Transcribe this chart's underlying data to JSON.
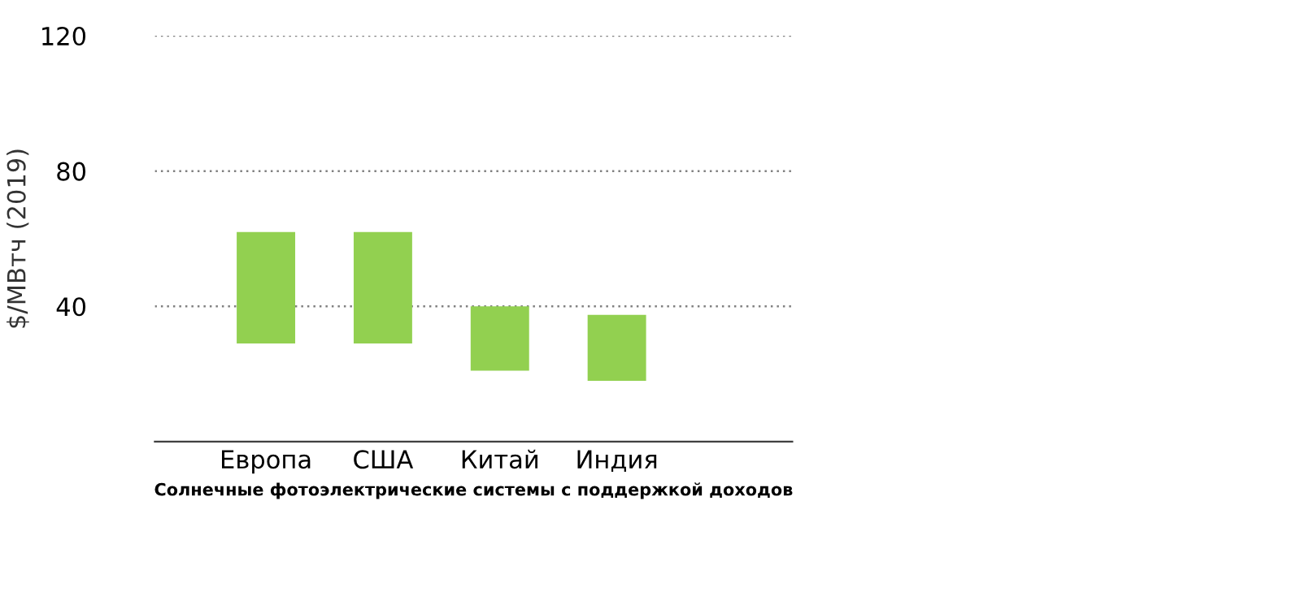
{
  "chart_data": {
    "type": "bar",
    "ylabel": "$/МВтч (2019)",
    "xlabel": "Солнечные фотоэлектрические системы с поддержкой доходов",
    "categories": [
      "Европа",
      "США",
      "Китай",
      "Индия"
    ],
    "base": [
      29,
      29,
      21,
      18
    ],
    "values": [
      33,
      33,
      19,
      19.5
    ],
    "color": "#92d050",
    "ylim": [
      0,
      120
    ],
    "yticks": [
      40,
      80,
      120
    ],
    "grid": "y"
  }
}
